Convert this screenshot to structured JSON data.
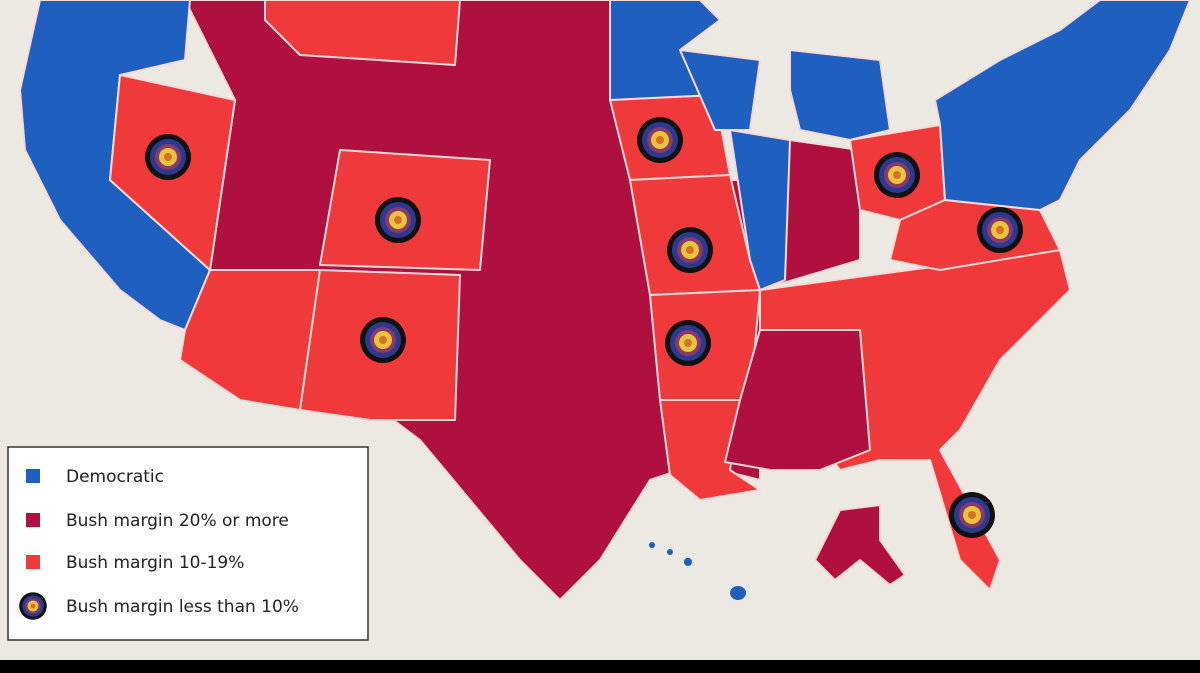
{
  "legend": {
    "items": [
      {
        "label": "Democratic",
        "color": "#1f5fbf"
      },
      {
        "label": "Bush margin 20% or more",
        "color": "#b0103f"
      },
      {
        "label": "Bush margin 10-19%",
        "color": "#f0393a"
      },
      {
        "label": "Bush margin less than 10%"
      }
    ]
  }
}
